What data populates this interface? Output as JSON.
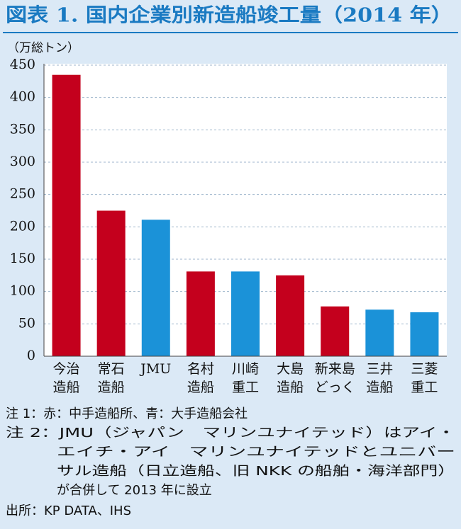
{
  "chart_data": {
    "type": "bar",
    "title": "図表 1. 国内企業別新造船竣工量（2014 年）",
    "y_label": "（万総トン）",
    "categories": [
      [
        "今治",
        "造船"
      ],
      [
        "常石",
        "造船"
      ],
      [
        "JMU"
      ],
      [
        "名村",
        "造船"
      ],
      [
        "川崎",
        "重工"
      ],
      [
        "大島",
        "造船"
      ],
      [
        "新来島",
        "どっく"
      ],
      [
        "三井",
        "造船"
      ],
      [
        "三菱",
        "重工"
      ]
    ],
    "values": [
      435,
      225,
      211,
      131,
      131,
      125,
      77,
      72,
      68
    ],
    "colors": [
      "#c4001d",
      "#c4001d",
      "#1b92d8",
      "#c4001d",
      "#1b92d8",
      "#c4001d",
      "#c4001d",
      "#1b92d8",
      "#1b92d8"
    ],
    "ylim": [
      0,
      450
    ],
    "yticks": [
      0,
      50,
      100,
      150,
      200,
      250,
      300,
      350,
      400,
      450
    ],
    "grid": true
  },
  "notes": [
    "注 1：赤：中手造船所、青：大手造船会社",
    "注 2：JMU（ジャパン　マリンユナイテッド）はアイ・",
    "エイチ・アイ　マリンユナイテッドとユニバー",
    "サル造船（日立造船、旧 NKK の船舶・海洋部門）",
    "が合併して 2013 年に設立",
    "出所：KP DATA、IHS"
  ]
}
